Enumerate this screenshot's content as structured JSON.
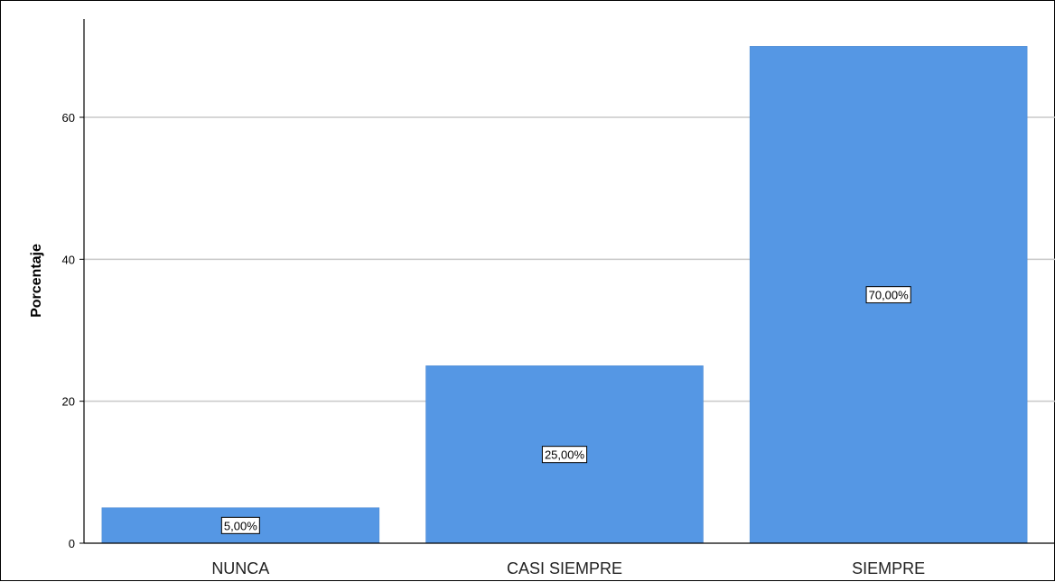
{
  "chart_data": {
    "type": "bar",
    "categories": [
      "NUNCA",
      "CASI SIEMPRE",
      "SIEMPRE"
    ],
    "values": [
      5,
      25,
      70
    ],
    "data_labels": [
      "5,00%",
      "25,00%",
      "70,00%"
    ],
    "ylabel": "Porcentaje",
    "xlabel": "",
    "yticks": [
      0,
      20,
      40,
      60
    ],
    "ylim": [
      0,
      72
    ],
    "grid": true,
    "bar_color": "#5597E4",
    "grid_color": "#C8C8C8"
  }
}
